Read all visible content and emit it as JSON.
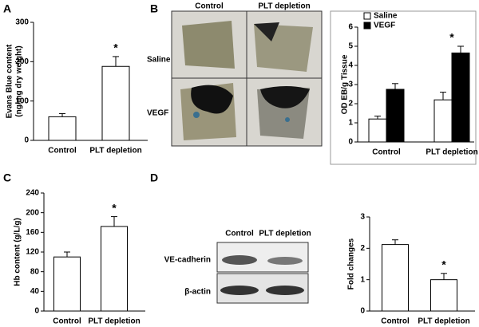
{
  "figure": {
    "panels": [
      "A",
      "B",
      "C",
      "D"
    ],
    "photo": {
      "columns": [
        "Control",
        "PLT depletion"
      ],
      "rows": [
        "Saline",
        "VEGF"
      ]
    },
    "blot": {
      "columns": [
        "Control",
        "PLT depletion"
      ],
      "rows": [
        "VE-cadherin",
        "β-actin"
      ]
    }
  },
  "chart_data": [
    {
      "type": "bar",
      "ylabel": [
        "Evans Blue content",
        "(ng/mg dry weight)"
      ],
      "categories": [
        "Control",
        "PLT depletion"
      ],
      "values": [
        60,
        188
      ],
      "errors": [
        8,
        25
      ],
      "color": "#ffffff",
      "ylim": [
        0,
        300
      ],
      "yticks": [
        0,
        100,
        200,
        300
      ],
      "annotation": "*"
    },
    {
      "type": "bar",
      "ylabel": "OD EB/g Tissue",
      "categories": [
        "Control",
        "PLT depletion"
      ],
      "series": [
        {
          "name": "Saline",
          "color": "#ffffff",
          "values": [
            1.2,
            2.2
          ],
          "errors": [
            0.15,
            0.4
          ]
        },
        {
          "name": "VEGF",
          "color": "#000000",
          "values": [
            2.75,
            4.65
          ],
          "errors": [
            0.3,
            0.35
          ]
        }
      ],
      "ylim": [
        0,
        6
      ],
      "yticks": [
        0,
        1,
        2,
        3,
        4,
        5,
        6
      ],
      "legend": "top-left",
      "annotation": "*"
    },
    {
      "type": "bar",
      "ylabel": "Hb content (g/L/g)",
      "categories": [
        "Control",
        "PLT depletion"
      ],
      "values": [
        110,
        172
      ],
      "errors": [
        10,
        20
      ],
      "color": "#ffffff",
      "ylim": [
        0,
        240
      ],
      "yticks": [
        0,
        40,
        80,
        120,
        160,
        200,
        240
      ],
      "annotation": "*"
    },
    {
      "type": "bar",
      "ylabel": "Fold changes",
      "categories": [
        "Control",
        "PLT depletion"
      ],
      "values": [
        2.12,
        1.0
      ],
      "errors": [
        0.15,
        0.2
      ],
      "color": "#ffffff",
      "ylim": [
        0,
        3
      ],
      "yticks": [
        0,
        1,
        2,
        3
      ],
      "annotation": "*"
    }
  ]
}
